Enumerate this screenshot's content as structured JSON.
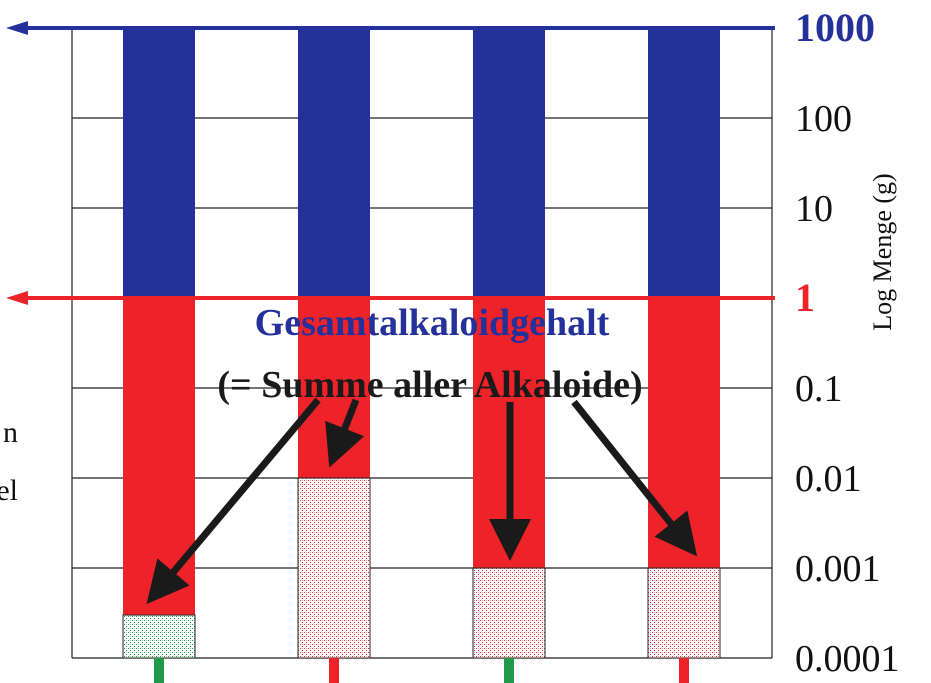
{
  "chart_data": {
    "type": "bar",
    "scale": "log",
    "ylabel": "Log Menge (g)",
    "ylim": [
      0.0001,
      1000
    ],
    "yticks": [
      "1000",
      "100",
      "10",
      "1",
      "0.1",
      "0.01",
      "0.001",
      "0.0001"
    ],
    "highlighted_ticks": {
      "1000": "#24319a",
      "1": "#ee2229"
    },
    "grid": true,
    "reference_lines": [
      {
        "value": 1000,
        "color": "#24319a"
      },
      {
        "value": 1,
        "color": "#ee2229"
      }
    ],
    "bars": [
      {
        "total": 1000,
        "alkaloid_total": 1,
        "single_alkaloid": 0.0003,
        "pattern_color": "#1f9a4a",
        "marker_color": "#1f9a4a"
      },
      {
        "total": 1000,
        "alkaloid_total": 1,
        "single_alkaloid": 0.01,
        "pattern_color": "#ee2229",
        "marker_color": "#ee2229"
      },
      {
        "total": 1000,
        "alkaloid_total": 1,
        "single_alkaloid": 0.001,
        "pattern_color": "#ee2229",
        "marker_color": "#1f9a4a"
      },
      {
        "total": 1000,
        "alkaloid_total": 1,
        "single_alkaloid": 0.001,
        "pattern_color": "#ee2229",
        "marker_color": "#ee2229"
      }
    ],
    "colors": {
      "total": "#24319a",
      "alkaloid_total": "#ee2229"
    },
    "annotation": {
      "line1": "Gesamtalkaloidgehalt",
      "line2": "(= Summe aller Alkaloide)",
      "line1_color": "#24319a",
      "line2_color": "#1a1a1a"
    },
    "left_fragments": [
      "n",
      "bel"
    ]
  }
}
